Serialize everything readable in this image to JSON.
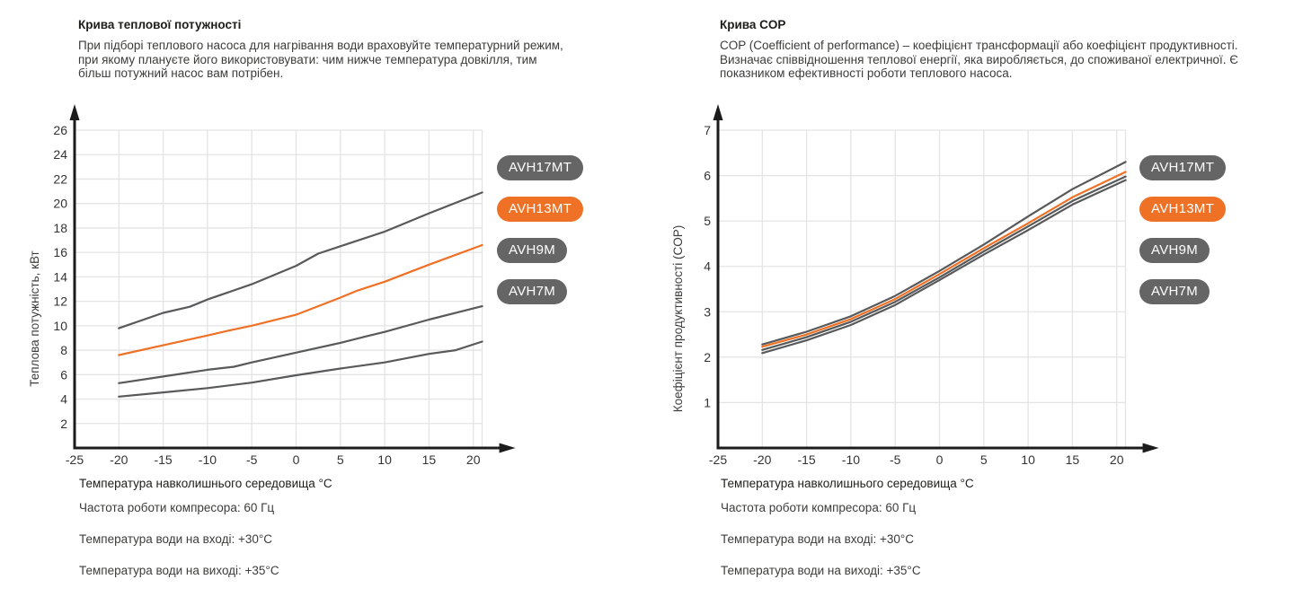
{
  "accent_color": "#ef7125",
  "gray_badge_color": "#656565",
  "curve_gray": "#58595b",
  "grid_color": "#e4e4e4",
  "axis_color": "#1c1c1c",
  "panels": [
    {
      "id": "heat-power",
      "description": "При підборі теплового насоса для нагрівання води враховуйте температурний режим, при якому плануєте його використовувати: чим нижче температура довкілля, тим більш потужний насос вам потрібен.",
      "footnotes": [
        "Частота роботи компресора: 60 Гц",
        "Температура води на вході: +30°C",
        "Температура води на виході: +35°C"
      ]
    },
    {
      "id": "cop",
      "description": "COP (Coefficient of performance) – коефіцієнт трансформації або коефіцієнт продуктивності. Визначає співвідношення теплової енергії, яка виробляється, до споживаної електричної. Є показником ефективності роботи теплового насоса.",
      "footnotes": [
        "Частота роботи компресора: 60 Гц",
        "Температура води на вході: +30°C",
        "Температура води на виході: +35°C"
      ]
    }
  ],
  "legend": {
    "position": "right",
    "items": [
      {
        "label": "AVH17MT",
        "color": "#656565",
        "selected": false
      },
      {
        "label": "AVH13MT",
        "color": "#ef7125",
        "selected": true
      },
      {
        "label": "AVH9M",
        "color": "#656565",
        "selected": false
      },
      {
        "label": "AVH7M",
        "color": "#656565",
        "selected": false
      }
    ]
  },
  "chart_data": [
    {
      "type": "line",
      "title": "Крива теплової потужності",
      "xlabel": "Температура навколишнього середовища °C",
      "ylabel": "Теплова потужність, кВт",
      "xlim": [
        -25,
        22
      ],
      "ylim": [
        0,
        26
      ],
      "x_ticks": [
        -25,
        -20,
        -15,
        -10,
        -5,
        0,
        5,
        10,
        15,
        20
      ],
      "y_ticks": [
        2,
        4,
        6,
        8,
        10,
        12,
        14,
        16,
        18,
        20,
        22,
        24,
        26
      ],
      "grid_x": [
        -20,
        -15,
        -10,
        -5,
        0,
        5,
        10,
        15,
        20,
        21
      ],
      "grid": true,
      "legend_position": "right",
      "series": [
        {
          "name": "AVH17MT",
          "color": "#58595b",
          "highlight": false,
          "points": [
            [
              -20,
              9.8
            ],
            [
              -15,
              11.05
            ],
            [
              -12,
              11.55
            ],
            [
              -10,
              12.15
            ],
            [
              -5,
              13.4
            ],
            [
              0,
              14.9
            ],
            [
              2.5,
              15.9
            ],
            [
              5,
              16.5
            ],
            [
              10,
              17.7
            ],
            [
              15,
              19.2
            ],
            [
              21,
              20.9
            ]
          ]
        },
        {
          "name": "AVH13MT",
          "color": "#ef7125",
          "highlight": true,
          "points": [
            [
              -20,
              7.6
            ],
            [
              -15,
              8.4
            ],
            [
              -10,
              9.2
            ],
            [
              -7,
              9.7
            ],
            [
              -5,
              10.0
            ],
            [
              0,
              10.9
            ],
            [
              5,
              12.3
            ],
            [
              7,
              12.9
            ],
            [
              10,
              13.6
            ],
            [
              15,
              15.0
            ],
            [
              21,
              16.6
            ]
          ]
        },
        {
          "name": "AVH9M",
          "color": "#58595b",
          "highlight": false,
          "points": [
            [
              -20,
              5.3
            ],
            [
              -15,
              5.85
            ],
            [
              -10,
              6.4
            ],
            [
              -7,
              6.65
            ],
            [
              -5,
              7.0
            ],
            [
              0,
              7.8
            ],
            [
              5,
              8.6
            ],
            [
              8,
              9.15
            ],
            [
              10,
              9.5
            ],
            [
              15,
              10.5
            ],
            [
              21,
              11.6
            ]
          ]
        },
        {
          "name": "AVH7M",
          "color": "#58595b",
          "highlight": false,
          "points": [
            [
              -20,
              4.2
            ],
            [
              -15,
              4.55
            ],
            [
              -10,
              4.9
            ],
            [
              -5,
              5.35
            ],
            [
              0,
              5.95
            ],
            [
              5,
              6.5
            ],
            [
              10,
              7.0
            ],
            [
              15,
              7.7
            ],
            [
              18,
              8.0
            ],
            [
              21,
              8.7
            ]
          ]
        }
      ]
    },
    {
      "type": "line",
      "title": "Крива COP",
      "xlabel": "Температура навколишнього середовища °C",
      "ylabel": "Коефіцієнт продуктивності (COP)",
      "xlim": [
        -25,
        22
      ],
      "ylim": [
        0,
        7
      ],
      "x_ticks": [
        -25,
        -20,
        -15,
        -10,
        -5,
        0,
        5,
        10,
        15,
        20
      ],
      "y_ticks": [
        1,
        2,
        3,
        4,
        5,
        6,
        7
      ],
      "grid_x": [
        -20,
        -15,
        -10,
        -5,
        0,
        5,
        10,
        15,
        20,
        21
      ],
      "grid": true,
      "legend_position": "right",
      "series": [
        {
          "name": "AVH17MT",
          "color": "#58595b",
          "highlight": false,
          "points": [
            [
              -20,
              2.28
            ],
            [
              -15,
              2.56
            ],
            [
              -10,
              2.9
            ],
            [
              -5,
              3.35
            ],
            [
              0,
              3.9
            ],
            [
              5,
              4.48
            ],
            [
              10,
              5.1
            ],
            [
              15,
              5.7
            ],
            [
              21,
              6.3
            ]
          ]
        },
        {
          "name": "AVH13MT",
          "color": "#ef7125",
          "highlight": true,
          "points": [
            [
              -20,
              2.23
            ],
            [
              -15,
              2.5
            ],
            [
              -10,
              2.84
            ],
            [
              -5,
              3.28
            ],
            [
              0,
              3.83
            ],
            [
              5,
              4.4
            ],
            [
              10,
              4.95
            ],
            [
              15,
              5.52
            ],
            [
              21,
              6.08
            ]
          ]
        },
        {
          "name": "AVH9M",
          "color": "#58595b",
          "highlight": false,
          "points": [
            [
              -20,
              2.16
            ],
            [
              -15,
              2.44
            ],
            [
              -10,
              2.78
            ],
            [
              -5,
              3.22
            ],
            [
              0,
              3.76
            ],
            [
              5,
              4.33
            ],
            [
              10,
              4.88
            ],
            [
              15,
              5.44
            ],
            [
              21,
              5.98
            ]
          ]
        },
        {
          "name": "AVH7M",
          "color": "#58595b",
          "highlight": false,
          "points": [
            [
              -20,
              2.09
            ],
            [
              -15,
              2.37
            ],
            [
              -10,
              2.71
            ],
            [
              -5,
              3.15
            ],
            [
              0,
              3.7
            ],
            [
              5,
              4.26
            ],
            [
              10,
              4.8
            ],
            [
              15,
              5.36
            ],
            [
              21,
              5.9
            ]
          ]
        }
      ]
    }
  ]
}
